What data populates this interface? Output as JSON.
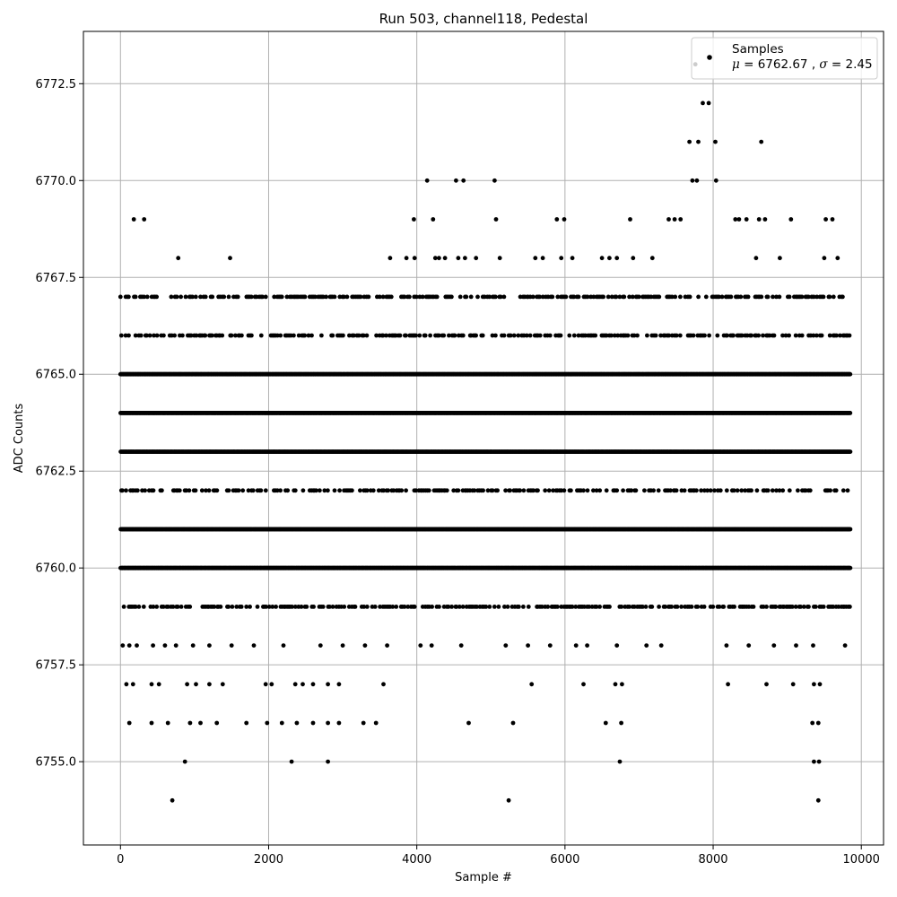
{
  "chart_data": {
    "type": "scatter",
    "title": "Run 503, channel118, Pedestal",
    "xlabel": "Sample #",
    "ylabel": "ADC Counts",
    "xlim": [
      -500,
      10300
    ],
    "ylim": [
      6752.85,
      6773.85
    ],
    "x_ticks": [
      0,
      2000,
      4000,
      6000,
      8000,
      10000
    ],
    "x_tick_labels": [
      "0",
      "2000",
      "4000",
      "6000",
      "8000",
      "10000"
    ],
    "y_ticks": [
      6755.0,
      6757.5,
      6760.0,
      6762.5,
      6765.0,
      6767.5,
      6770.0,
      6772.5
    ],
    "y_tick_labels": [
      "6755.0",
      "6757.5",
      "6760.0",
      "6762.5",
      "6765.0",
      "6767.5",
      "6770.0",
      "6772.5"
    ],
    "grid": true,
    "legend_position": "top-right",
    "marker_color": "#000000",
    "sample_count": 9850,
    "series": [
      {
        "name": "Samples",
        "stat_mu_symbol": "μ",
        "stat_sigma_symbol": "σ",
        "stat_mu_value": "6762.67",
        "stat_sigma_value": "2.45",
        "continuous_bands": [
          {
            "y": 6765,
            "x_start": 0,
            "x_end": 9850
          },
          {
            "y": 6764,
            "x_start": 0,
            "x_end": 9850
          },
          {
            "y": 6763,
            "x_start": 0,
            "x_end": 9850
          },
          {
            "y": 6761,
            "x_start": 0,
            "x_end": 9850
          },
          {
            "y": 6760,
            "x_start": 0,
            "x_end": 9850
          },
          {
            "y": 6762,
            "x_start": 0,
            "x_end": 9850,
            "sparse": true
          },
          {
            "y": 6759,
            "x_start": 0,
            "x_end": 9850,
            "sparse": true
          },
          {
            "y": 6766,
            "x_start": 0,
            "x_end": 9850,
            "sparse": true
          },
          {
            "y": 6767,
            "x_start": 0,
            "x_end": 9850,
            "sparse": true
          }
        ],
        "points": [
          [
            180,
            6769
          ],
          [
            320,
            6769
          ],
          [
            780,
            6768
          ],
          [
            1480,
            6768
          ],
          [
            3640,
            6768
          ],
          [
            3860,
            6768
          ],
          [
            3960,
            6769
          ],
          [
            3970,
            6768
          ],
          [
            4140,
            6770
          ],
          [
            4220,
            6769
          ],
          [
            4250,
            6768
          ],
          [
            4300,
            6768
          ],
          [
            4380,
            6768
          ],
          [
            4530,
            6770
          ],
          [
            4560,
            6768
          ],
          [
            4630,
            6770
          ],
          [
            4650,
            6768
          ],
          [
            4800,
            6768
          ],
          [
            5050,
            6770
          ],
          [
            5070,
            6769
          ],
          [
            5120,
            6768
          ],
          [
            5600,
            6768
          ],
          [
            5700,
            6768
          ],
          [
            5890,
            6769
          ],
          [
            5990,
            6769
          ],
          [
            5950,
            6768
          ],
          [
            6100,
            6768
          ],
          [
            6500,
            6768
          ],
          [
            6600,
            6768
          ],
          [
            6700,
            6768
          ],
          [
            6880,
            6769
          ],
          [
            6920,
            6768
          ],
          [
            7180,
            6768
          ],
          [
            7400,
            6769
          ],
          [
            7480,
            6769
          ],
          [
            7560,
            6769
          ],
          [
            7680,
            6771
          ],
          [
            7720,
            6770
          ],
          [
            7760,
            6773
          ],
          [
            7780,
            6770
          ],
          [
            7800,
            6771
          ],
          [
            7860,
            6772
          ],
          [
            7940,
            6772
          ],
          [
            8030,
            6771
          ],
          [
            8040,
            6770
          ],
          [
            8300,
            6769
          ],
          [
            8350,
            6769
          ],
          [
            8450,
            6769
          ],
          [
            8620,
            6769
          ],
          [
            8650,
            6771
          ],
          [
            8700,
            6769
          ],
          [
            9050,
            6769
          ],
          [
            9520,
            6769
          ],
          [
            9610,
            6769
          ],
          [
            8580,
            6768
          ],
          [
            8900,
            6768
          ],
          [
            9500,
            6768
          ],
          [
            9680,
            6768
          ],
          [
            30,
            6758
          ],
          [
            120,
            6758
          ],
          [
            220,
            6758
          ],
          [
            440,
            6758
          ],
          [
            600,
            6758
          ],
          [
            750,
            6758
          ],
          [
            980,
            6758
          ],
          [
            1200,
            6758
          ],
          [
            1500,
            6758
          ],
          [
            1800,
            6758
          ],
          [
            2200,
            6758
          ],
          [
            2700,
            6758
          ],
          [
            3000,
            6758
          ],
          [
            3300,
            6758
          ],
          [
            3600,
            6758
          ],
          [
            4050,
            6758
          ],
          [
            4200,
            6758
          ],
          [
            4600,
            6758
          ],
          [
            5200,
            6758
          ],
          [
            5500,
            6758
          ],
          [
            5800,
            6758
          ],
          [
            6150,
            6758
          ],
          [
            6300,
            6758
          ],
          [
            6700,
            6758
          ],
          [
            7100,
            6758
          ],
          [
            7300,
            6758
          ],
          [
            8180,
            6758
          ],
          [
            8480,
            6758
          ],
          [
            8820,
            6758
          ],
          [
            9120,
            6758
          ],
          [
            9350,
            6758
          ],
          [
            9780,
            6758
          ],
          [
            80,
            6757
          ],
          [
            170,
            6757
          ],
          [
            420,
            6757
          ],
          [
            520,
            6757
          ],
          [
            900,
            6757
          ],
          [
            1020,
            6757
          ],
          [
            1200,
            6757
          ],
          [
            1380,
            6757
          ],
          [
            1960,
            6757
          ],
          [
            2040,
            6757
          ],
          [
            2360,
            6757
          ],
          [
            2460,
            6757
          ],
          [
            2600,
            6757
          ],
          [
            2800,
            6757
          ],
          [
            2950,
            6757
          ],
          [
            3550,
            6757
          ],
          [
            5550,
            6757
          ],
          [
            6250,
            6757
          ],
          [
            6680,
            6757
          ],
          [
            6770,
            6757
          ],
          [
            8200,
            6757
          ],
          [
            8720,
            6757
          ],
          [
            9080,
            6757
          ],
          [
            9360,
            6757
          ],
          [
            9440,
            6757
          ],
          [
            120,
            6756
          ],
          [
            420,
            6756
          ],
          [
            640,
            6756
          ],
          [
            940,
            6756
          ],
          [
            1080,
            6756
          ],
          [
            1300,
            6756
          ],
          [
            1700,
            6756
          ],
          [
            1980,
            6756
          ],
          [
            2180,
            6756
          ],
          [
            2380,
            6756
          ],
          [
            2600,
            6756
          ],
          [
            2800,
            6756
          ],
          [
            2950,
            6756
          ],
          [
            3280,
            6756
          ],
          [
            3450,
            6756
          ],
          [
            4700,
            6756
          ],
          [
            5300,
            6756
          ],
          [
            6550,
            6756
          ],
          [
            6760,
            6756
          ],
          [
            9340,
            6756
          ],
          [
            9420,
            6756
          ],
          [
            870,
            6755
          ],
          [
            2310,
            6755
          ],
          [
            2800,
            6755
          ],
          [
            6740,
            6755
          ],
          [
            9360,
            6755
          ],
          [
            9430,
            6755
          ],
          [
            700,
            6754
          ],
          [
            5240,
            6754
          ],
          [
            9420,
            6754
          ]
        ]
      }
    ]
  }
}
